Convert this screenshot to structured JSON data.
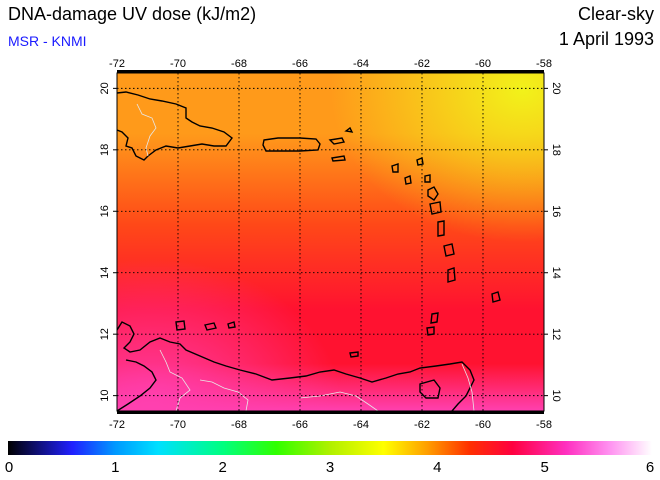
{
  "header": {
    "title": "DNA-damage UV dose (kJ/m2)",
    "organization": "MSR - KNMI",
    "condition": "Clear-sky",
    "date": "1 April 1993"
  },
  "map": {
    "lon_range": [
      -72,
      -58
    ],
    "lat_range": [
      9.5,
      20.5
    ],
    "lon_ticks": [
      -72,
      -70,
      -68,
      -66,
      -64,
      -62,
      -60,
      -58
    ],
    "lat_ticks": [
      10,
      12,
      14,
      16,
      18,
      20
    ],
    "gridlines": true,
    "field_colors": {
      "yellow": "#f2f21a",
      "orange": "#ff9a1a",
      "red_orange": "#ff4818",
      "red": "#ff1230",
      "magenta": "#ff40b0"
    }
  },
  "colorbar": {
    "min": 0,
    "max": 6,
    "labels": [
      "0",
      "1",
      "2",
      "3",
      "4",
      "5",
      "6"
    ],
    "stops": [
      {
        "value": 0,
        "color": "#000000"
      },
      {
        "value": 0.6,
        "color": "#2020ff"
      },
      {
        "value": 1.0,
        "color": "#0099ff"
      },
      {
        "value": 1.4,
        "color": "#00e0ff"
      },
      {
        "value": 2.0,
        "color": "#00ff80"
      },
      {
        "value": 2.5,
        "color": "#30ff00"
      },
      {
        "value": 3.0,
        "color": "#b0f000"
      },
      {
        "value": 3.5,
        "color": "#ffff00"
      },
      {
        "value": 3.9,
        "color": "#ffa000"
      },
      {
        "value": 4.3,
        "color": "#ff3000"
      },
      {
        "value": 4.7,
        "color": "#ff0040"
      },
      {
        "value": 5.2,
        "color": "#ff30c0"
      },
      {
        "value": 5.6,
        "color": "#ff90f0"
      },
      {
        "value": 6.0,
        "color": "#ffffff"
      }
    ]
  }
}
